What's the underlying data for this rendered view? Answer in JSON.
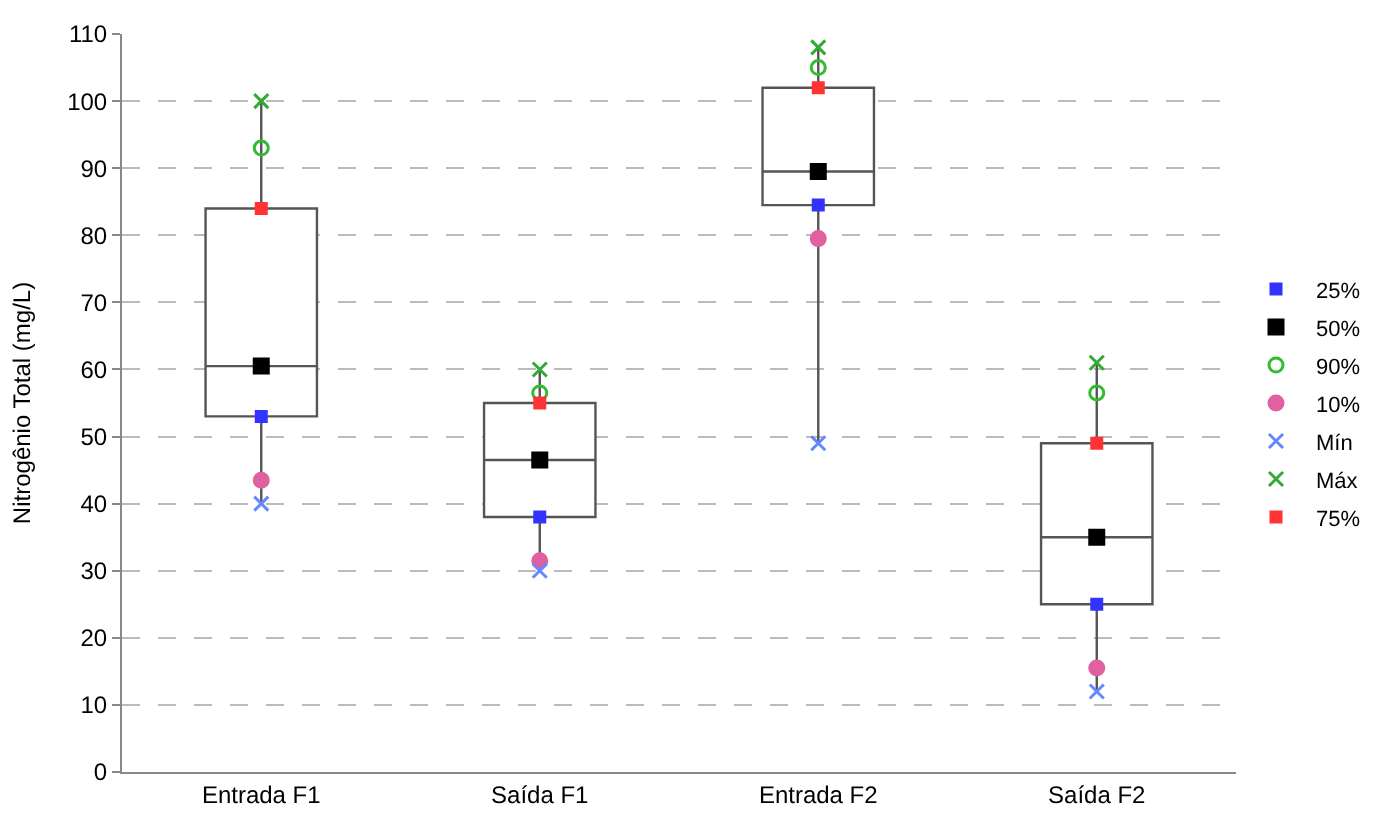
{
  "chart_data": {
    "type": "box",
    "ylabel": "Nitrogênio Total (mg/L)",
    "categories": [
      "Entrada F1",
      "Saída F1",
      "Entrada F2",
      "Saída F2"
    ],
    "boxes": [
      {
        "low": 40,
        "q1": 53,
        "median": 60.5,
        "q3": 84,
        "high": 100
      },
      {
        "low": 30,
        "q1": 38,
        "median": 46.5,
        "q3": 55,
        "high": 60
      },
      {
        "low": 49,
        "q1": 84.5,
        "median": 89.5,
        "q3": 102,
        "high": 108
      },
      {
        "low": 12,
        "q1": 25,
        "median": 35,
        "q3": 49,
        "high": 61
      }
    ],
    "series": [
      {
        "name": "25%",
        "type": "scatter",
        "marker": "square",
        "color": "#3333ff",
        "values": [
          53,
          38,
          84.5,
          25
        ]
      },
      {
        "name": "50%",
        "type": "scatter",
        "marker": "square",
        "color": "#000000",
        "values": [
          60.5,
          46.5,
          89.5,
          35
        ]
      },
      {
        "name": "90%",
        "type": "scatter",
        "marker": "circle-open",
        "color": "#33bb33",
        "values": [
          93,
          56.5,
          105,
          56.5
        ]
      },
      {
        "name": "10%",
        "type": "scatter",
        "marker": "circle",
        "color": "#e060a0",
        "values": [
          43.5,
          31.5,
          79.5,
          15.5
        ]
      },
      {
        "name": "Mín",
        "type": "scatter",
        "marker": "cross",
        "color": "#6688ff",
        "values": [
          40,
          30,
          49,
          12
        ]
      },
      {
        "name": "Máx",
        "type": "scatter",
        "marker": "cross",
        "color": "#33aa33",
        "values": [
          100,
          60,
          108,
          61
        ]
      },
      {
        "name": "75%",
        "type": "scatter",
        "marker": "square",
        "color": "#ff3333",
        "values": [
          84,
          55,
          102,
          49
        ]
      }
    ],
    "ylim": [
      0,
      110
    ],
    "yticks": [
      0,
      10,
      20,
      30,
      40,
      50,
      60,
      70,
      80,
      90,
      100,
      110
    ],
    "grid": "y",
    "legend": "right"
  }
}
